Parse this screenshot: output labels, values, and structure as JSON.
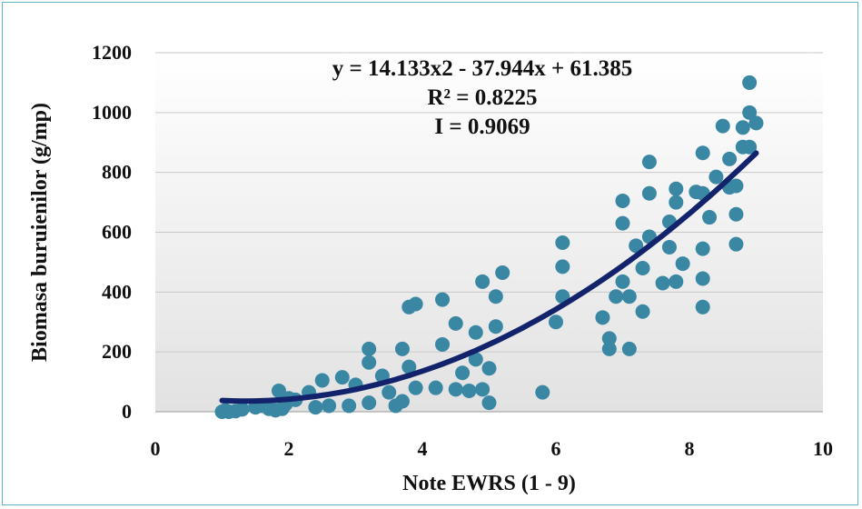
{
  "chart_data": {
    "type": "scatter",
    "xlabel": "Note EWRS (1 - 9)",
    "ylabel": "Biomasa buruienilor (g/mp)",
    "xlim": [
      0,
      10
    ],
    "ylim": [
      0,
      1200
    ],
    "xticks": [
      "0",
      "2",
      "4",
      "6",
      "8",
      "10"
    ],
    "yticks": [
      "0",
      "200",
      "400",
      "600",
      "800",
      "1000",
      "1200"
    ],
    "grid": "horizontal",
    "annotations": [
      "y = 14.133x2 - 37.944x + 61.385",
      "R² = 0.8225",
      "I = 0.9069"
    ],
    "trendline": {
      "type": "polynomial",
      "coefficients": [
        14.133,
        -37.944,
        61.385
      ],
      "x_range": [
        1,
        9
      ]
    },
    "colors": {
      "points": "#3a87a4",
      "trendline": "#12236b",
      "border": "#5bb8c8"
    },
    "points": [
      [
        1.0,
        0
      ],
      [
        1.05,
        5
      ],
      [
        1.1,
        0
      ],
      [
        1.2,
        2
      ],
      [
        1.3,
        8
      ],
      [
        1.5,
        15
      ],
      [
        1.6,
        20
      ],
      [
        1.7,
        10
      ],
      [
        1.8,
        5
      ],
      [
        1.85,
        70
      ],
      [
        1.9,
        10
      ],
      [
        1.95,
        25
      ],
      [
        2.0,
        45
      ],
      [
        2.1,
        40
      ],
      [
        2.3,
        65
      ],
      [
        2.4,
        15
      ],
      [
        2.5,
        105
      ],
      [
        2.6,
        20
      ],
      [
        2.8,
        115
      ],
      [
        2.9,
        20
      ],
      [
        3.0,
        90
      ],
      [
        3.2,
        210
      ],
      [
        3.2,
        165
      ],
      [
        3.2,
        30
      ],
      [
        3.4,
        120
      ],
      [
        3.5,
        65
      ],
      [
        3.6,
        20
      ],
      [
        3.7,
        35
      ],
      [
        3.7,
        210
      ],
      [
        3.8,
        150
      ],
      [
        3.8,
        350
      ],
      [
        3.9,
        360
      ],
      [
        3.9,
        80
      ],
      [
        4.2,
        80
      ],
      [
        4.3,
        375
      ],
      [
        4.3,
        225
      ],
      [
        4.5,
        75
      ],
      [
        4.5,
        295
      ],
      [
        4.6,
        130
      ],
      [
        4.7,
        70
      ],
      [
        4.8,
        265
      ],
      [
        4.8,
        175
      ],
      [
        4.9,
        435
      ],
      [
        4.9,
        75
      ],
      [
        5.0,
        145
      ],
      [
        5.0,
        30
      ],
      [
        5.1,
        385
      ],
      [
        5.1,
        285
      ],
      [
        5.2,
        465
      ],
      [
        5.8,
        65
      ],
      [
        6.0,
        300
      ],
      [
        6.1,
        385
      ],
      [
        6.1,
        485
      ],
      [
        6.1,
        565
      ],
      [
        6.7,
        315
      ],
      [
        6.8,
        210
      ],
      [
        6.8,
        245
      ],
      [
        6.9,
        385
      ],
      [
        7.0,
        435
      ],
      [
        7.0,
        630
      ],
      [
        7.0,
        705
      ],
      [
        7.1,
        210
      ],
      [
        7.1,
        385
      ],
      [
        7.2,
        555
      ],
      [
        7.3,
        335
      ],
      [
        7.3,
        480
      ],
      [
        7.4,
        585
      ],
      [
        7.4,
        730
      ],
      [
        7.4,
        835
      ],
      [
        7.6,
        430
      ],
      [
        7.7,
        550
      ],
      [
        7.7,
        635
      ],
      [
        7.8,
        435
      ],
      [
        7.8,
        700
      ],
      [
        7.8,
        745
      ],
      [
        7.9,
        495
      ],
      [
        8.1,
        735
      ],
      [
        8.2,
        350
      ],
      [
        8.2,
        445
      ],
      [
        8.2,
        545
      ],
      [
        8.2,
        730
      ],
      [
        8.2,
        865
      ],
      [
        8.3,
        650
      ],
      [
        8.4,
        785
      ],
      [
        8.5,
        955
      ],
      [
        8.6,
        845
      ],
      [
        8.6,
        750
      ],
      [
        8.7,
        560
      ],
      [
        8.7,
        660
      ],
      [
        8.7,
        755
      ],
      [
        8.8,
        950
      ],
      [
        8.8,
        885
      ],
      [
        8.9,
        1000
      ],
      [
        8.9,
        1100
      ],
      [
        8.9,
        885
      ],
      [
        9.0,
        965
      ]
    ]
  }
}
